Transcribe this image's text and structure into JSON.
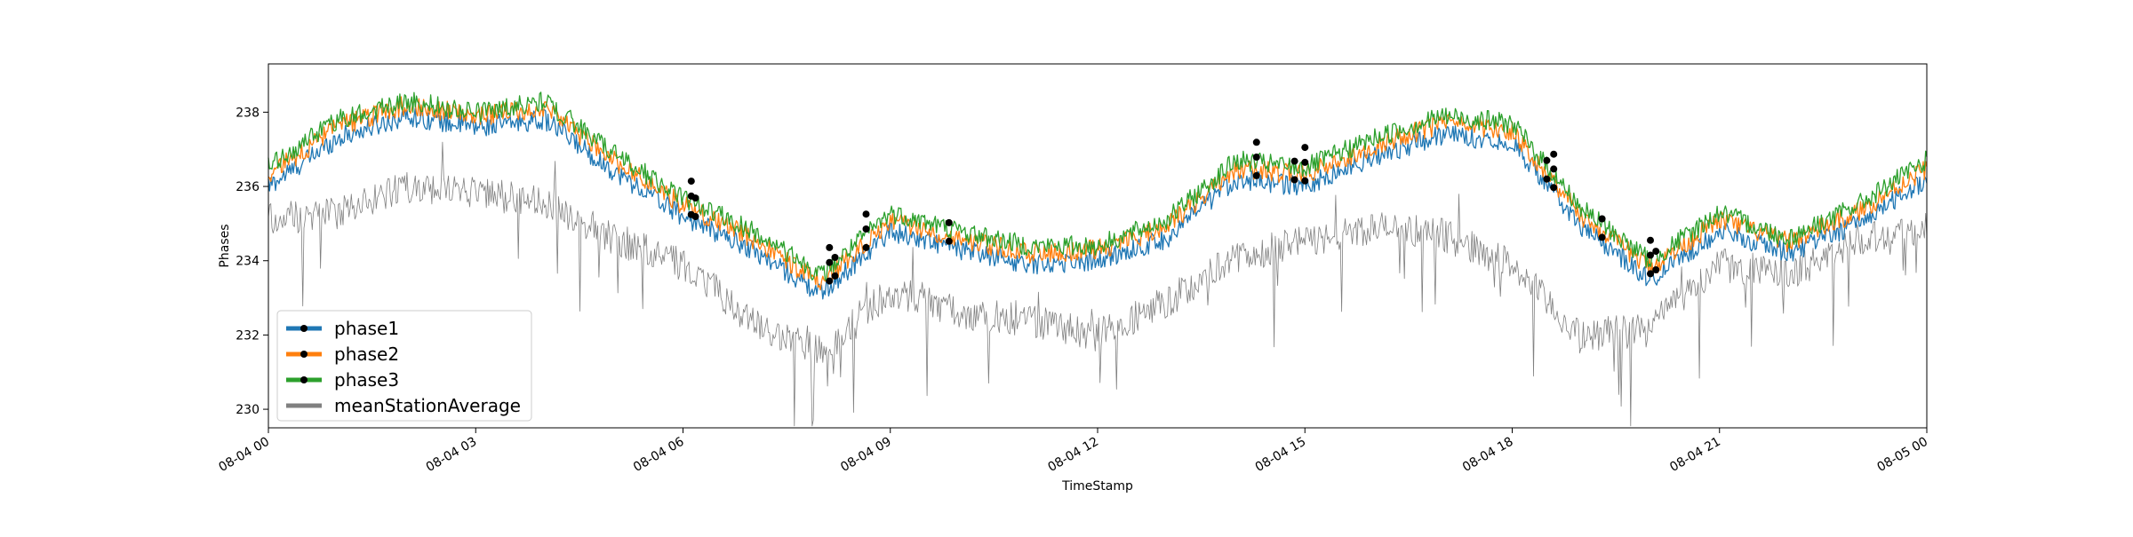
{
  "chart_data": {
    "type": "line",
    "title": "",
    "xlabel": "TimeStamp",
    "ylabel": "Phases",
    "x_range": [
      "08-04 00",
      "08-05 00"
    ],
    "x_ticks": [
      "08-04 00",
      "08-04 03",
      "08-04 06",
      "08-04 09",
      "08-04 12",
      "08-04 15",
      "08-04 18",
      "08-04 21",
      "08-05 00"
    ],
    "ylim": [
      229.5,
      239.3
    ],
    "y_ticks": [
      230,
      232,
      234,
      236,
      238
    ],
    "y_tick_labels": [
      "230",
      "232",
      "234",
      "236",
      "238"
    ],
    "grid": false,
    "legend_position": "lower-left",
    "x_hours": [
      0,
      1,
      2,
      3,
      4,
      5,
      6,
      7,
      8,
      9,
      10,
      11,
      12,
      13,
      14,
      15,
      16,
      17,
      18,
      19,
      20,
      21,
      22,
      23,
      24
    ],
    "series": [
      {
        "name": "phase1",
        "color": "#1f77b4",
        "values": [
          236.0,
          237.3,
          237.9,
          237.6,
          237.8,
          236.4,
          235.2,
          234.3,
          233.1,
          234.8,
          234.3,
          233.9,
          234.0,
          234.6,
          236.2,
          236.0,
          236.8,
          237.4,
          237.2,
          234.9,
          233.5,
          234.8,
          234.2,
          235.0,
          236.2
        ]
      },
      {
        "name": "phase2",
        "color": "#ff7f0e",
        "values": [
          236.3,
          237.6,
          238.2,
          237.9,
          238.1,
          236.7,
          235.5,
          234.6,
          233.4,
          235.1,
          234.6,
          234.2,
          234.3,
          234.9,
          236.5,
          236.3,
          237.1,
          237.7,
          237.5,
          235.2,
          233.8,
          235.1,
          234.5,
          235.3,
          236.5
        ]
      },
      {
        "name": "phase3",
        "color": "#2ca02c",
        "values": [
          236.5,
          237.8,
          238.3,
          238.0,
          238.3,
          236.9,
          235.7,
          234.8,
          233.6,
          235.3,
          234.8,
          234.4,
          234.4,
          235.1,
          236.7,
          236.5,
          237.3,
          237.9,
          237.7,
          235.4,
          234.0,
          235.3,
          234.6,
          235.5,
          236.7
        ]
      },
      {
        "name": "meanStationAverage",
        "color": "#808080",
        "values": [
          235.1,
          235.3,
          236.0,
          235.8,
          235.6,
          234.6,
          233.9,
          232.4,
          231.5,
          233.2,
          232.6,
          232.4,
          232.0,
          232.9,
          234.1,
          234.5,
          234.9,
          234.7,
          233.9,
          231.9,
          232.3,
          233.9,
          233.6,
          234.6,
          234.9
        ]
      }
    ],
    "markers": {
      "color": "#000000",
      "hours": [
        6.12,
        6.18,
        8.12,
        8.2,
        8.65,
        9.85,
        14.3,
        14.85,
        15.0,
        18.5,
        18.6,
        19.3,
        20.0,
        20.08
      ]
    }
  }
}
